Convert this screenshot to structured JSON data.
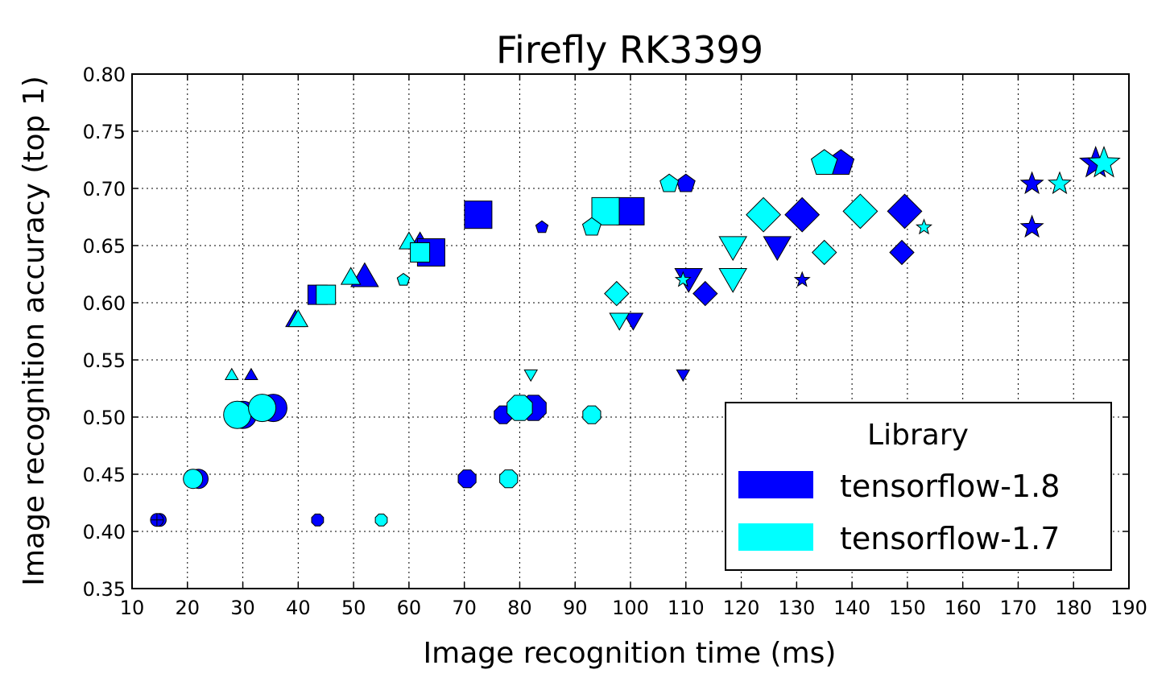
{
  "chart_data": {
    "type": "scatter",
    "title": "Firefly RK3399",
    "xlabel": "Image recognition time (ms)",
    "ylabel": "Image recognition accuracy (top 1)",
    "xlim": [
      10,
      190
    ],
    "ylim": [
      0.35,
      0.8
    ],
    "xticks": [
      "10",
      "20",
      "30",
      "40",
      "50",
      "60",
      "70",
      "80",
      "90",
      "100",
      "110",
      "120",
      "130",
      "140",
      "150",
      "160",
      "170",
      "180",
      "190"
    ],
    "yticks": [
      "0.35",
      "0.40",
      "0.45",
      "0.50",
      "0.55",
      "0.60",
      "0.65",
      "0.70",
      "0.75",
      "0.80"
    ],
    "grid": true,
    "legend": {
      "title": "Library",
      "position": "lower-right",
      "entries": [
        {
          "label": "tensorflow-1.8",
          "color": "#0000ff"
        },
        {
          "label": "tensorflow-1.7",
          "color": "#00ffff"
        }
      ]
    },
    "series": [
      {
        "name": "tensorflow-1.8",
        "color": "#0000ff",
        "points": [
          {
            "x": 15,
            "y": 0.41,
            "marker": "circle",
            "size": "small"
          },
          {
            "x": 22,
            "y": 0.446,
            "marker": "circle",
            "size": "medium"
          },
          {
            "x": 30,
            "y": 0.502,
            "marker": "circle",
            "size": "large"
          },
          {
            "x": 35.5,
            "y": 0.508,
            "marker": "circle",
            "size": "large"
          },
          {
            "x": 14.5,
            "y": 0.41,
            "marker": "plus",
            "size": "small"
          },
          {
            "x": 43.5,
            "y": 0.41,
            "marker": "octagon",
            "size": "small"
          },
          {
            "x": 70.5,
            "y": 0.446,
            "marker": "octagon",
            "size": "medium"
          },
          {
            "x": 77,
            "y": 0.502,
            "marker": "octagon",
            "size": "medium"
          },
          {
            "x": 82.5,
            "y": 0.508,
            "marker": "octagon",
            "size": "large"
          },
          {
            "x": 31.5,
            "y": 0.536,
            "marker": "triangle-up",
            "size": "small"
          },
          {
            "x": 39.5,
            "y": 0.584,
            "marker": "triangle-up",
            "size": "medium"
          },
          {
            "x": 52,
            "y": 0.621,
            "marker": "triangle-up",
            "size": "large"
          },
          {
            "x": 62,
            "y": 0.652,
            "marker": "triangle-up",
            "size": "medium"
          },
          {
            "x": 43.5,
            "y": 0.607,
            "marker": "square",
            "size": "medium"
          },
          {
            "x": 64,
            "y": 0.644,
            "marker": "square",
            "size": "large"
          },
          {
            "x": 72.5,
            "y": 0.677,
            "marker": "square",
            "size": "large"
          },
          {
            "x": 100,
            "y": 0.68,
            "marker": "square",
            "size": "large"
          },
          {
            "x": 59,
            "y": 0.62,
            "marker": "pentagon",
            "size": "small"
          },
          {
            "x": 84,
            "y": 0.666,
            "marker": "pentagon",
            "size": "small"
          },
          {
            "x": 110,
            "y": 0.704,
            "marker": "pentagon",
            "size": "medium"
          },
          {
            "x": 138,
            "y": 0.722,
            "marker": "pentagon",
            "size": "large"
          },
          {
            "x": 100.5,
            "y": 0.586,
            "marker": "triangle-down",
            "size": "medium"
          },
          {
            "x": 109.5,
            "y": 0.538,
            "marker": "triangle-down",
            "size": "small"
          },
          {
            "x": 110.5,
            "y": 0.623,
            "marker": "triangle-down",
            "size": "large"
          },
          {
            "x": 126.5,
            "y": 0.651,
            "marker": "triangle-down",
            "size": "large"
          },
          {
            "x": 113.5,
            "y": 0.608,
            "marker": "diamond",
            "size": "medium"
          },
          {
            "x": 131,
            "y": 0.677,
            "marker": "diamond",
            "size": "large"
          },
          {
            "x": 149,
            "y": 0.644,
            "marker": "diamond",
            "size": "medium"
          },
          {
            "x": 149.5,
            "y": 0.68,
            "marker": "diamond",
            "size": "large"
          },
          {
            "x": 131,
            "y": 0.62,
            "marker": "star",
            "size": "small"
          },
          {
            "x": 172.5,
            "y": 0.666,
            "marker": "star",
            "size": "medium"
          },
          {
            "x": 172.5,
            "y": 0.704,
            "marker": "star",
            "size": "medium"
          },
          {
            "x": 184,
            "y": 0.722,
            "marker": "star",
            "size": "large"
          }
        ]
      },
      {
        "name": "tensorflow-1.7",
        "color": "#00ffff",
        "points": [
          {
            "x": 21,
            "y": 0.446,
            "marker": "circle",
            "size": "medium"
          },
          {
            "x": 29,
            "y": 0.502,
            "marker": "circle",
            "size": "large"
          },
          {
            "x": 33.5,
            "y": 0.508,
            "marker": "circle",
            "size": "large"
          },
          {
            "x": 55,
            "y": 0.41,
            "marker": "octagon",
            "size": "small"
          },
          {
            "x": 78,
            "y": 0.446,
            "marker": "octagon",
            "size": "medium"
          },
          {
            "x": 80,
            "y": 0.508,
            "marker": "octagon",
            "size": "large"
          },
          {
            "x": 93,
            "y": 0.502,
            "marker": "octagon",
            "size": "medium"
          },
          {
            "x": 28,
            "y": 0.536,
            "marker": "triangle-up",
            "size": "small"
          },
          {
            "x": 40,
            "y": 0.584,
            "marker": "triangle-up",
            "size": "medium"
          },
          {
            "x": 49.5,
            "y": 0.621,
            "marker": "triangle-up",
            "size": "medium"
          },
          {
            "x": 60,
            "y": 0.652,
            "marker": "triangle-up",
            "size": "medium"
          },
          {
            "x": 45,
            "y": 0.607,
            "marker": "square",
            "size": "medium"
          },
          {
            "x": 62,
            "y": 0.644,
            "marker": "square",
            "size": "medium"
          },
          {
            "x": 95.5,
            "y": 0.68,
            "marker": "square",
            "size": "large"
          },
          {
            "x": 59,
            "y": 0.62,
            "marker": "pentagon",
            "size": "small"
          },
          {
            "x": 93,
            "y": 0.666,
            "marker": "pentagon",
            "size": "medium"
          },
          {
            "x": 107,
            "y": 0.704,
            "marker": "pentagon",
            "size": "medium"
          },
          {
            "x": 135,
            "y": 0.722,
            "marker": "pentagon",
            "size": "large"
          },
          {
            "x": 82,
            "y": 0.538,
            "marker": "triangle-down",
            "size": "small"
          },
          {
            "x": 98,
            "y": 0.586,
            "marker": "triangle-down",
            "size": "medium"
          },
          {
            "x": 118.5,
            "y": 0.623,
            "marker": "triangle-down",
            "size": "large"
          },
          {
            "x": 118.5,
            "y": 0.651,
            "marker": "triangle-down",
            "size": "large"
          },
          {
            "x": 97.5,
            "y": 0.608,
            "marker": "diamond",
            "size": "medium"
          },
          {
            "x": 124,
            "y": 0.677,
            "marker": "diamond",
            "size": "large"
          },
          {
            "x": 135,
            "y": 0.644,
            "marker": "diamond",
            "size": "medium"
          },
          {
            "x": 141.5,
            "y": 0.68,
            "marker": "diamond",
            "size": "large"
          },
          {
            "x": 109.5,
            "y": 0.62,
            "marker": "star",
            "size": "small"
          },
          {
            "x": 153,
            "y": 0.666,
            "marker": "star",
            "size": "small"
          },
          {
            "x": 177.5,
            "y": 0.704,
            "marker": "star",
            "size": "medium"
          },
          {
            "x": 185.5,
            "y": 0.722,
            "marker": "star",
            "size": "large"
          }
        ]
      }
    ]
  }
}
